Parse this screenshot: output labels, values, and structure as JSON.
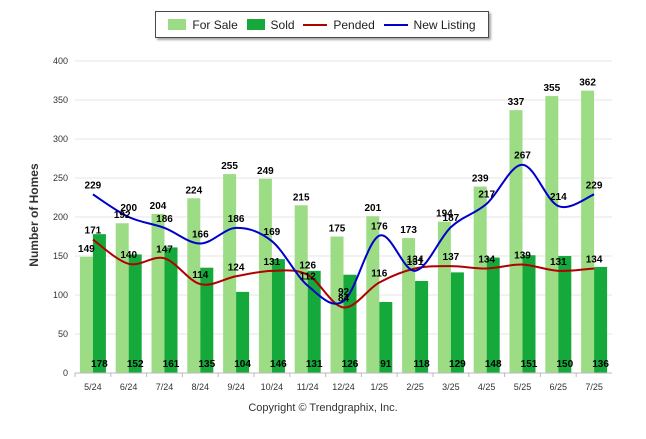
{
  "chart_data": {
    "type": "bar",
    "categories": [
      "5/24",
      "6/24",
      "7/24",
      "8/24",
      "9/24",
      "10/24",
      "11/24",
      "12/24",
      "1/25",
      "2/25",
      "3/25",
      "4/25",
      "5/25",
      "6/25",
      "7/25"
    ],
    "series": [
      {
        "name": "For Sale",
        "type": "bar",
        "color": "#9cdc84",
        "values": [
          149,
          192,
          204,
          224,
          255,
          249,
          215,
          175,
          201,
          173,
          194,
          239,
          337,
          355,
          362
        ]
      },
      {
        "name": "Sold",
        "type": "bar",
        "color": "#15a83a",
        "values": [
          178,
          152,
          161,
          135,
          104,
          146,
          131,
          126,
          91,
          118,
          129,
          148,
          151,
          150,
          136
        ]
      },
      {
        "name": "Pended",
        "type": "line",
        "color": "#b00000",
        "values": [
          171,
          140,
          147,
          114,
          124,
          131,
          126,
          84,
          116,
          134,
          137,
          134,
          139,
          131,
          134
        ]
      },
      {
        "name": "New Listing",
        "type": "line",
        "color": "#0000cc",
        "values": [
          229,
          200,
          186,
          166,
          186,
          169,
          112,
          92,
          176,
          131,
          187,
          217,
          267,
          214,
          229
        ]
      }
    ],
    "ylabel": "Number of Homes",
    "xlabel": "",
    "ylim": [
      0,
      400
    ],
    "yticks": [
      0,
      50,
      100,
      150,
      200,
      250,
      300,
      350,
      400
    ],
    "grid": true,
    "legend": "top-center",
    "copyright": "Copyright © Trendgraphix, Inc."
  }
}
